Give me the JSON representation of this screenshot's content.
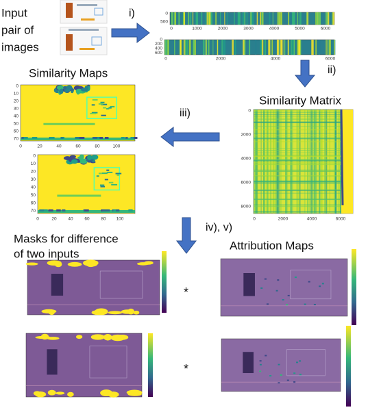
{
  "input_label": [
    "Input",
    "pair of",
    "images"
  ],
  "steps": [
    "i)",
    "ii)",
    "iii)",
    "iv), v)"
  ],
  "strip_top": {
    "xticks": [
      0,
      1000,
      2000,
      3000,
      4000,
      5000,
      6000
    ],
    "yticks": [
      0,
      500
    ]
  },
  "strip_bottom": {
    "xticks": [
      0,
      2000,
      4000,
      6000
    ],
    "yticks": [
      0,
      200,
      400,
      600
    ]
  },
  "similarity_maps": {
    "title": "Similarity Maps",
    "xticks": [
      0,
      20,
      40,
      60,
      80,
      100
    ],
    "yticks": [
      0,
      10,
      20,
      30,
      40,
      50,
      60,
      70
    ]
  },
  "similarity_matrix": {
    "title": "Similarity Matrix",
    "xticks": [
      0,
      2000,
      4000,
      6000
    ],
    "yticks": [
      0,
      2000,
      4000,
      6000,
      8000
    ]
  },
  "masks": {
    "title": [
      "Masks for difference",
      "of  two inputs"
    ]
  },
  "attribution": {
    "title": "Attribution Maps"
  },
  "operators": [
    "*",
    "*"
  ]
}
